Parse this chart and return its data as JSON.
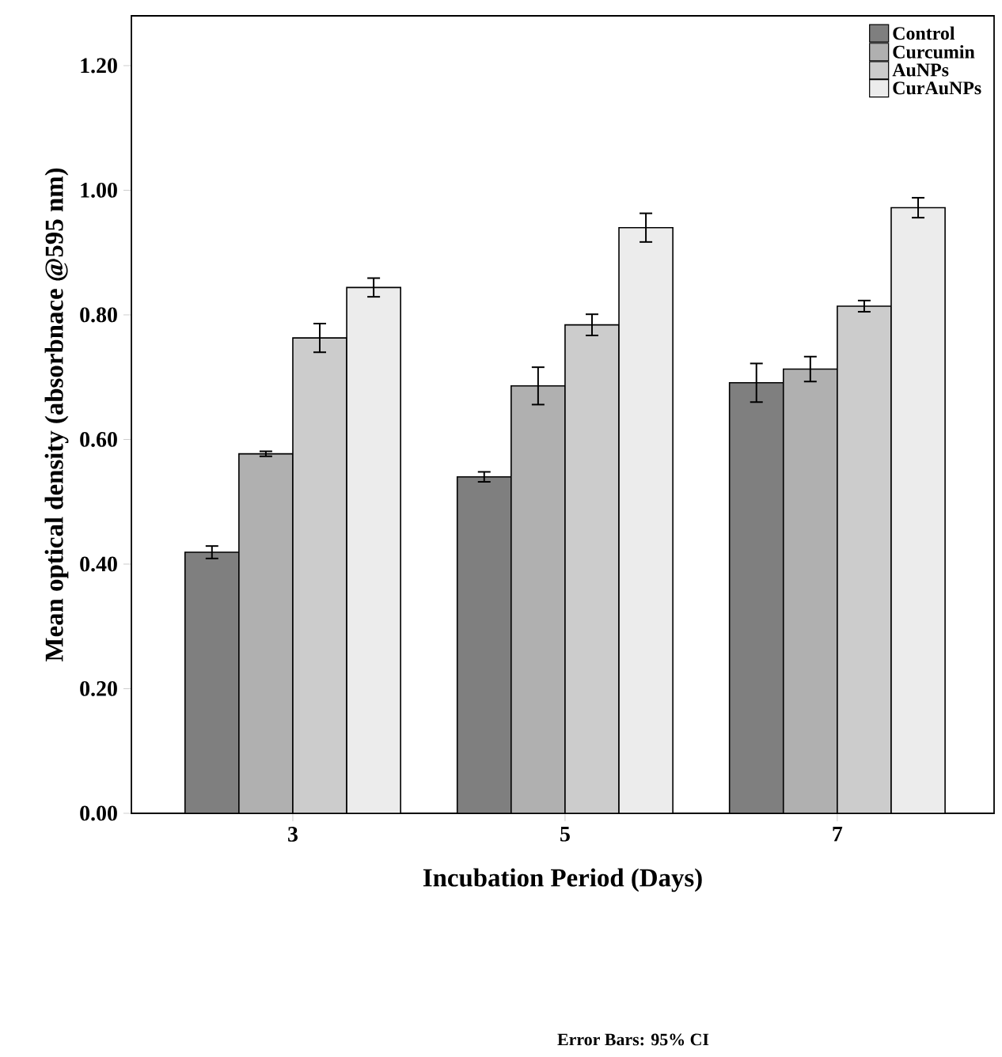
{
  "chart_data": {
    "type": "bar",
    "xlabel": "Incubation Period (Days)",
    "ylabel": "Mean optical density (absorbnace @595 nm)",
    "categories": [
      "3",
      "5",
      "7"
    ],
    "series": [
      {
        "name": "Control",
        "color": "#7f7f7f",
        "values": [
          0.419,
          0.54,
          0.691
        ],
        "errors": [
          0.01,
          0.008,
          0.031
        ]
      },
      {
        "name": "Curcumin",
        "color": "#b0b0b0",
        "values": [
          0.577,
          0.686,
          0.713
        ],
        "errors": [
          0.004,
          0.03,
          0.02
        ]
      },
      {
        "name": "AuNPs",
        "color": "#cccccc",
        "values": [
          0.763,
          0.784,
          0.814
        ],
        "errors": [
          0.023,
          0.017,
          0.009
        ]
      },
      {
        "name": "CurAuNPs",
        "color": "#ececec",
        "values": [
          0.844,
          0.94,
          0.972
        ],
        "errors": [
          0.015,
          0.023,
          0.016
        ]
      }
    ],
    "ylim": [
      0,
      1.28
    ],
    "yticks": [
      {
        "value": 0,
        "label": "0.00"
      },
      {
        "value": 0.2,
        "label": "0.20"
      },
      {
        "value": 0.4,
        "label": "0.40"
      },
      {
        "value": 0.6,
        "label": "0.60"
      },
      {
        "value": 0.8,
        "label": "0.80"
      },
      {
        "value": 1.0,
        "label": "1.00"
      },
      {
        "value": 1.2,
        "label": "1.20"
      }
    ],
    "legend": "top right",
    "grid": false,
    "annotations": [
      "Error Bars: 95% CI"
    ]
  }
}
